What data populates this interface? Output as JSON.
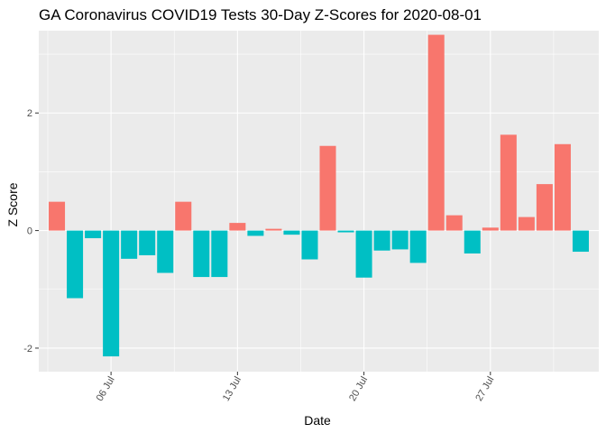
{
  "chart_data": {
    "type": "bar",
    "title": "GA Coronavirus COVID19 Tests 30-Day Z-Scores for 2020-08-01",
    "xlabel": "Date",
    "ylabel": "Z Score",
    "x_start": "2020-07-03",
    "x_end": "2020-08-01",
    "xlim": [
      "2020-07-02",
      "2020-08-02"
    ],
    "ylim": [
      -2.4,
      3.4
    ],
    "x_ticks": [
      {
        "date": "2020-07-06",
        "label": "06 Jul"
      },
      {
        "date": "2020-07-13",
        "label": "13 Jul"
      },
      {
        "date": "2020-07-20",
        "label": "20 Jul"
      },
      {
        "date": "2020-07-27",
        "label": "27 Jul"
      }
    ],
    "y_ticks": [
      {
        "value": -2,
        "label": "-2"
      },
      {
        "value": 0,
        "label": "0"
      },
      {
        "value": 2,
        "label": "2"
      }
    ],
    "colors": {
      "positive": "#F8766D",
      "negative": "#00BFC4",
      "panel": "#EBEBEB",
      "grid": "#FFFFFF"
    },
    "grid": true,
    "legend": "none",
    "values": [
      0.49,
      -1.15,
      -0.13,
      -2.14,
      -0.48,
      -0.42,
      -0.72,
      0.49,
      -0.79,
      -0.79,
      0.13,
      -0.09,
      0.03,
      -0.07,
      -0.49,
      1.44,
      -0.03,
      -0.8,
      -0.34,
      -0.32,
      -0.55,
      3.33,
      0.26,
      -0.39,
      0.05,
      1.63,
      0.23,
      0.79,
      1.47,
      -0.36
    ]
  }
}
